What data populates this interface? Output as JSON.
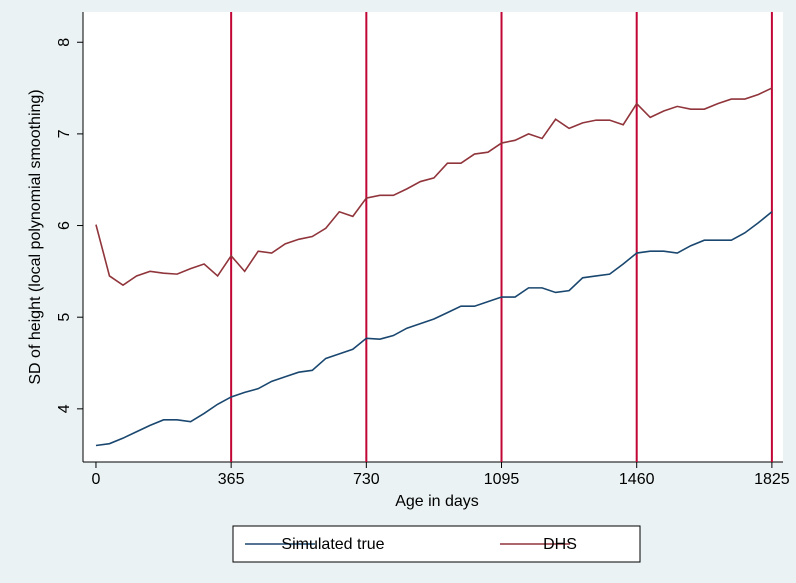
{
  "chart_data": {
    "type": "line",
    "x_label": "Age in days",
    "y_label": "SD of height (local polynomial smoothing)",
    "x": [
      0,
      36.5,
      73,
      109.5,
      146,
      182.5,
      219,
      255.5,
      292,
      328.5,
      365,
      401.5,
      438,
      474.5,
      511,
      547.5,
      584,
      620.5,
      657,
      693.5,
      730,
      766.5,
      803,
      839.5,
      876,
      912.5,
      949,
      985.5,
      1022,
      1058.5,
      1095,
      1131.5,
      1168,
      1204.5,
      1241,
      1277.5,
      1314,
      1350.5,
      1387,
      1423.5,
      1460,
      1496.5,
      1533,
      1569.5,
      1606,
      1642.5,
      1679,
      1715.5,
      1752,
      1788.5,
      1825
    ],
    "series": [
      {
        "name": "Simulated true",
        "color": "#1a476f",
        "values": [
          3.6,
          3.62,
          3.68,
          3.75,
          3.82,
          3.88,
          3.88,
          3.86,
          3.95,
          4.05,
          4.13,
          4.18,
          4.22,
          4.3,
          4.35,
          4.4,
          4.42,
          4.55,
          4.6,
          4.65,
          4.77,
          4.76,
          4.8,
          4.88,
          4.93,
          4.98,
          5.05,
          5.12,
          5.12,
          5.17,
          5.22,
          5.22,
          5.32,
          5.32,
          5.27,
          5.29,
          5.43,
          5.45,
          5.47,
          5.58,
          5.7,
          5.72,
          5.72,
          5.7,
          5.78,
          5.84,
          5.84,
          5.84,
          5.92,
          6.03,
          6.15
        ]
      },
      {
        "name": "DHS",
        "color": "#90353b",
        "values": [
          6.01,
          5.45,
          5.35,
          5.45,
          5.5,
          5.48,
          5.47,
          5.53,
          5.58,
          5.45,
          5.67,
          5.5,
          5.72,
          5.7,
          5.8,
          5.85,
          5.88,
          5.97,
          6.15,
          6.1,
          6.3,
          6.33,
          6.33,
          6.4,
          6.48,
          6.52,
          6.68,
          6.68,
          6.78,
          6.8,
          6.9,
          6.93,
          7.0,
          6.95,
          7.16,
          7.06,
          7.12,
          7.15,
          7.15,
          7.1,
          7.33,
          7.18,
          7.25,
          7.3,
          7.27,
          7.27,
          7.33,
          7.38,
          7.38,
          7.43,
          7.5
        ]
      }
    ],
    "reference_lines": {
      "x": [
        365,
        730,
        1095,
        1460,
        1825
      ],
      "color": "#c10534"
    },
    "xlim": [
      -35,
      1855
    ],
    "ylim": [
      3.42,
      8.33
    ],
    "xticks": [
      0,
      365,
      730,
      1095,
      1460,
      1825
    ],
    "yticks": [
      4,
      5,
      6,
      7,
      8
    ],
    "grid": false,
    "legend": "bottom"
  }
}
